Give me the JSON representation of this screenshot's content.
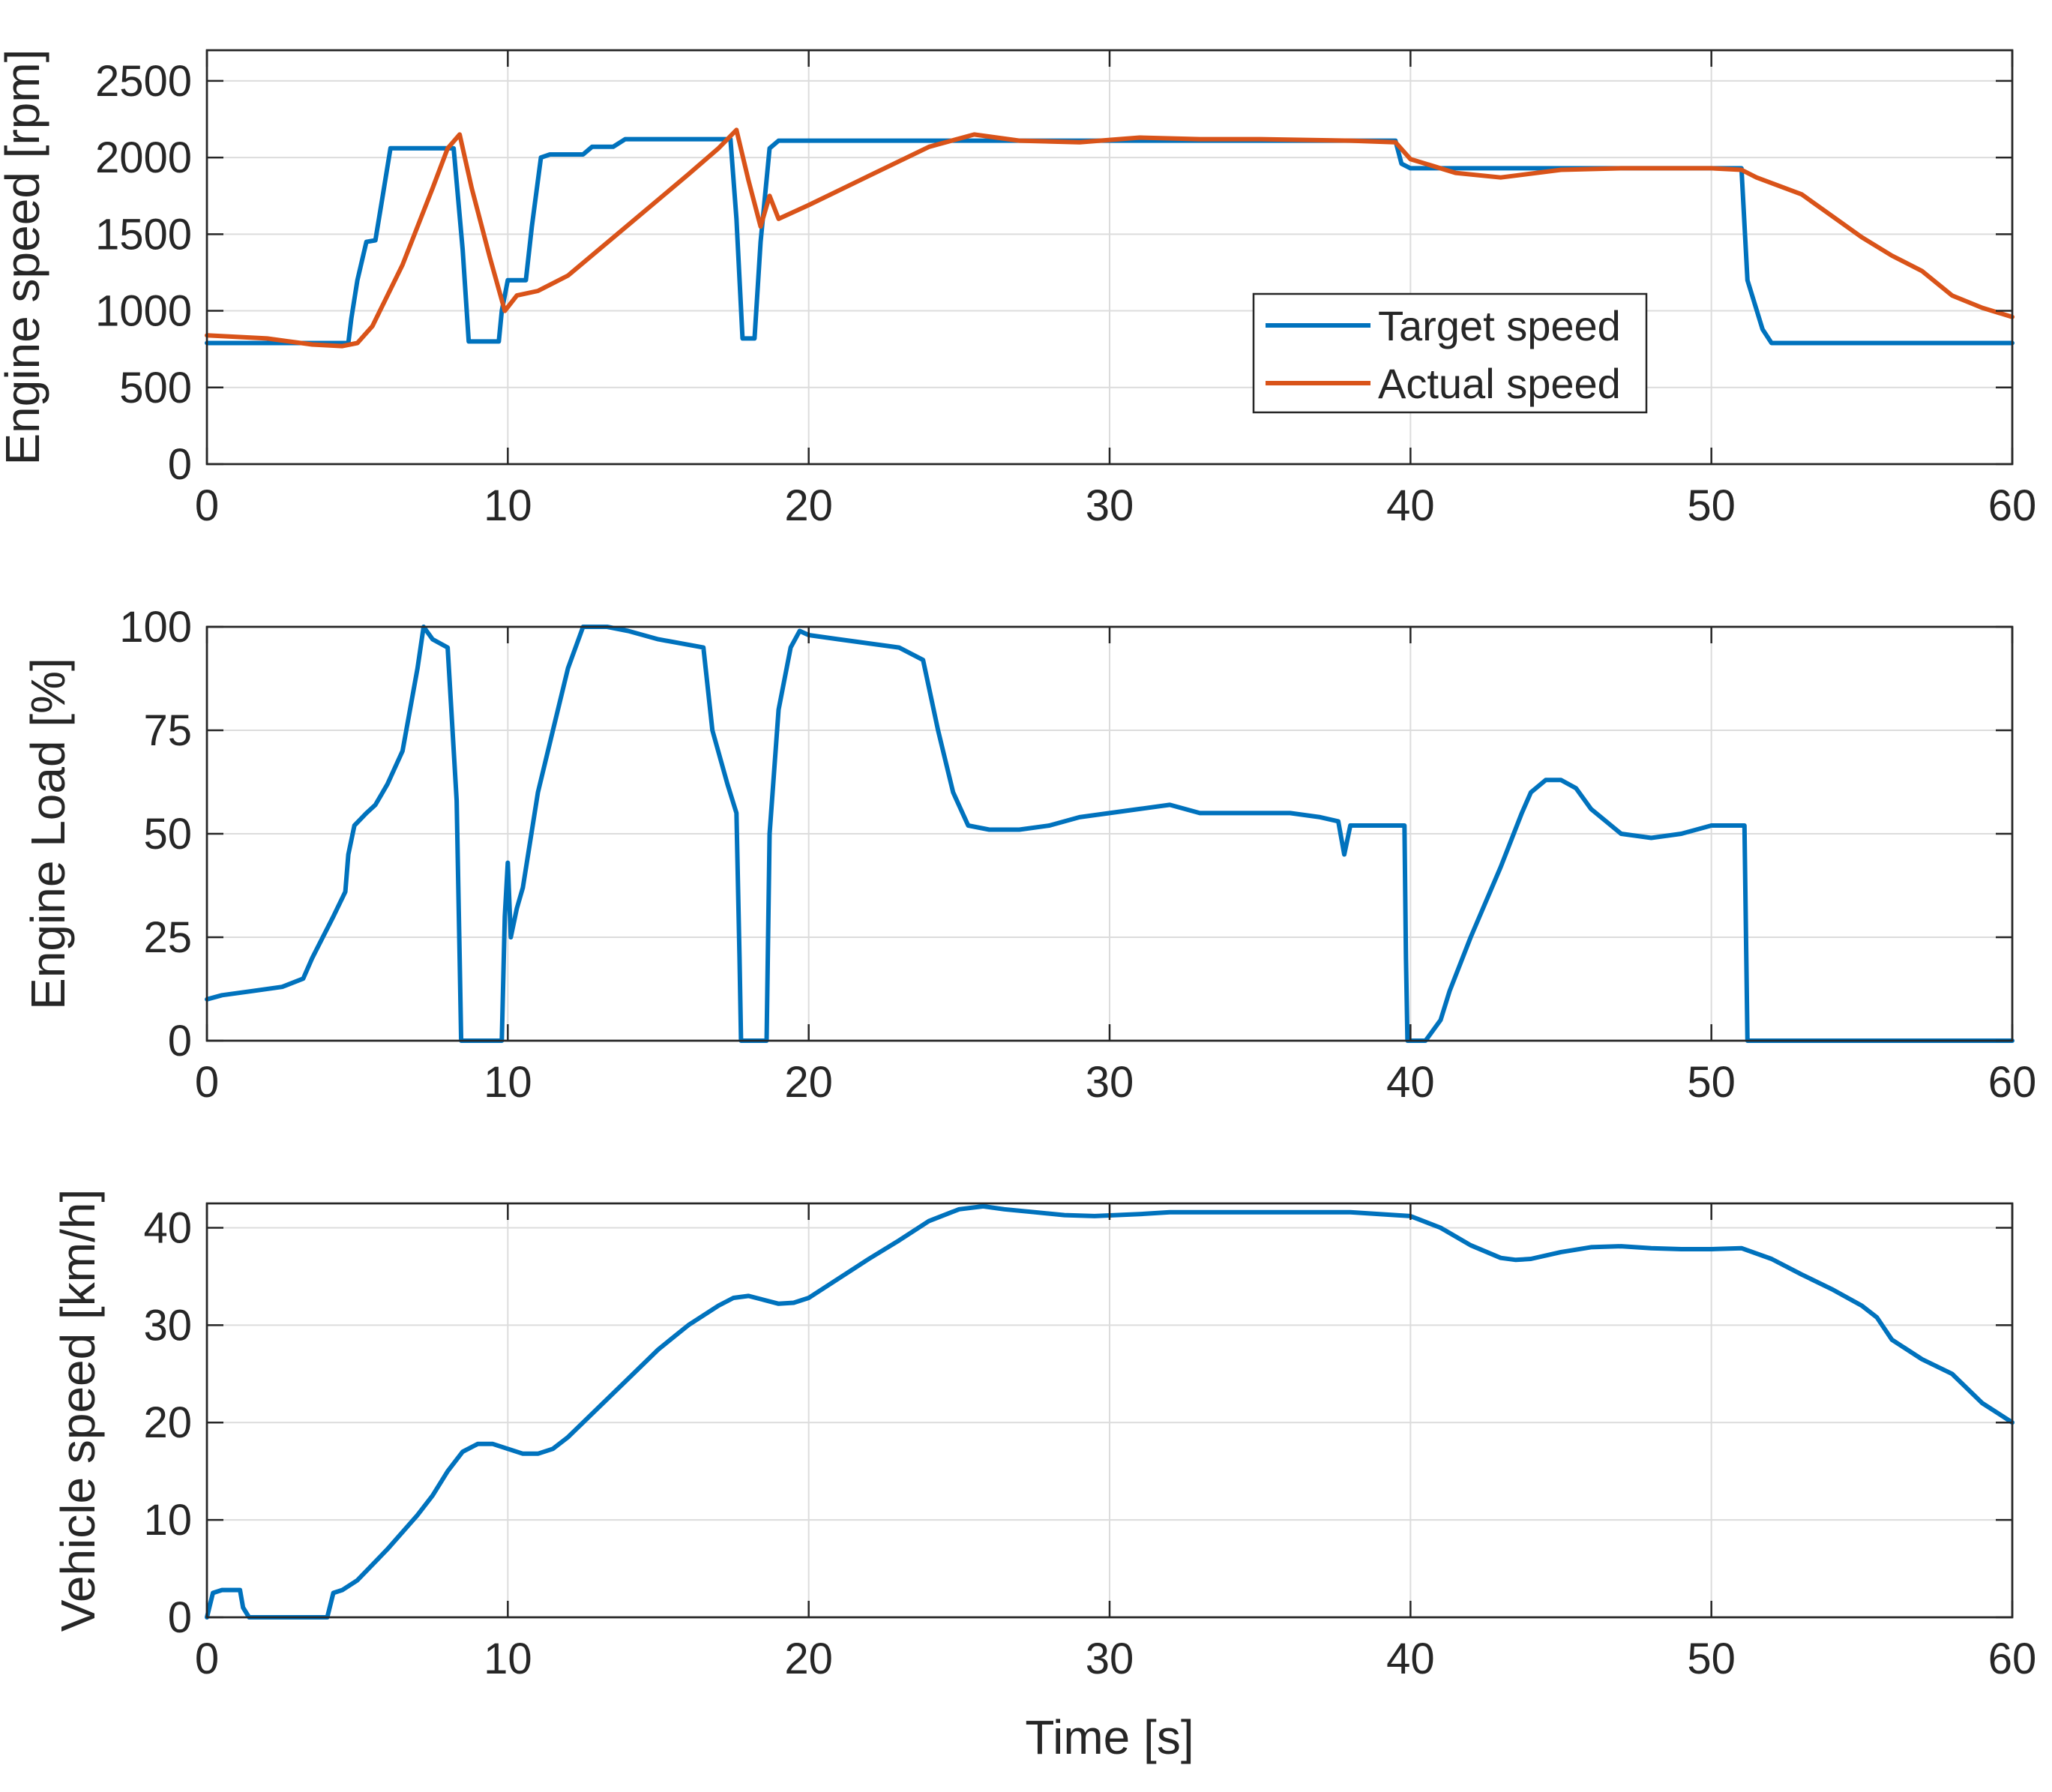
{
  "colors": {
    "target": "#0072BD",
    "actual": "#D95319",
    "grid": "#dcdcdc",
    "axis": "#262626"
  },
  "chart_data": [
    {
      "type": "line",
      "id": "engine-speed",
      "title": "",
      "xlabel": "",
      "ylabel": "Engine speed [rpm]",
      "xlim": [
        0,
        60
      ],
      "ylim": [
        0,
        2700
      ],
      "xticks": [
        0,
        10,
        20,
        30,
        40,
        50,
        60
      ],
      "yticks": [
        0,
        500,
        1000,
        1500,
        2000,
        2500
      ],
      "grid": true,
      "legend": {
        "position": "right-center",
        "entries": [
          "Target speed",
          "Actual speed"
        ]
      },
      "series": [
        {
          "name": "Target speed",
          "color": "#0072BD",
          "x": [
            0,
            4.7,
            4.8,
            5.0,
            5.3,
            5.6,
            5.8,
            6.1,
            8.2,
            8.5,
            8.7,
            9.7,
            9.8,
            10.0,
            10.6,
            10.8,
            11.1,
            11.4,
            12.5,
            12.8,
            13.5,
            13.9,
            17.4,
            17.6,
            17.8,
            18.2,
            18.4,
            18.7,
            19.0,
            39.5,
            39.7,
            40.0,
            51.0,
            51.2,
            51.7,
            52.0,
            60
          ],
          "y": [
            790,
            790,
            950,
            1200,
            1450,
            1460,
            1700,
            2060,
            2060,
            1400,
            800,
            800,
            1000,
            1200,
            1200,
            1550,
            2000,
            2020,
            2020,
            2070,
            2070,
            2120,
            2120,
            1600,
            820,
            820,
            1450,
            2060,
            2110,
            2110,
            1960,
            1930,
            1930,
            1200,
            880,
            790,
            790
          ]
        },
        {
          "name": "Actual speed",
          "color": "#D95319",
          "x": [
            0,
            2,
            3.5,
            4.5,
            5.0,
            5.5,
            6.5,
            7.5,
            8.0,
            8.4,
            8.8,
            9.4,
            9.9,
            10.3,
            11.0,
            12.0,
            14.0,
            16.0,
            17.0,
            17.6,
            18.0,
            18.4,
            18.7,
            19.0,
            20.0,
            22.0,
            24.0,
            25.5,
            27.0,
            29.0,
            31.0,
            33.0,
            35.0,
            38.0,
            39.5,
            40.0,
            41.5,
            43.0,
            45.0,
            47.0,
            50.0,
            51.0,
            51.5,
            53.0,
            54.0,
            55.0,
            56.0,
            57.0,
            58.0,
            59.0,
            60.0
          ],
          "y": [
            840,
            820,
            780,
            770,
            790,
            900,
            1300,
            1800,
            2060,
            2150,
            1800,
            1350,
            1000,
            1100,
            1130,
            1230,
            1560,
            1890,
            2060,
            2180,
            1850,
            1550,
            1750,
            1600,
            1690,
            1880,
            2070,
            2150,
            2110,
            2100,
            2130,
            2120,
            2120,
            2110,
            2100,
            1990,
            1900,
            1870,
            1920,
            1930,
            1930,
            1920,
            1870,
            1760,
            1620,
            1480,
            1360,
            1260,
            1100,
            1020,
            960
          ]
        }
      ]
    },
    {
      "type": "line",
      "id": "engine-load",
      "title": "",
      "xlabel": "",
      "ylabel": "Engine Load [%]",
      "xlim": [
        0,
        60
      ],
      "ylim": [
        0,
        100
      ],
      "xticks": [
        0,
        10,
        20,
        30,
        40,
        50,
        60
      ],
      "yticks": [
        0,
        25,
        50,
        75,
        100
      ],
      "grid": true,
      "series": [
        {
          "name": "Engine Load",
          "color": "#0072BD",
          "x": [
            0,
            0.5,
            1.5,
            2.5,
            3.2,
            3.5,
            4.2,
            4.6,
            4.7,
            4.9,
            5.3,
            5.6,
            6.0,
            6.5,
            7.0,
            7.2,
            7.5,
            8.0,
            8.3,
            8.4,
            8.45,
            9.8,
            9.9,
            10.0,
            10.1,
            10.3,
            10.5,
            11.0,
            11.5,
            12.0,
            12.5,
            13.3,
            14.0,
            15.0,
            16.5,
            16.8,
            17.3,
            17.6,
            17.7,
            17.75,
            18.6,
            18.7,
            19.0,
            19.4,
            19.7,
            20.0,
            21.0,
            22.0,
            23.0,
            23.8,
            24.3,
            24.8,
            25.3,
            26.0,
            27.0,
            28.0,
            29.0,
            30.0,
            31.0,
            32.0,
            33.0,
            34.0,
            35.0,
            36.0,
            37.0,
            37.6,
            37.8,
            38.0,
            39.0,
            39.8,
            39.85,
            39.9,
            40.0,
            40.5,
            41.0,
            41.3,
            42.0,
            43.0,
            43.7,
            44.0,
            44.5,
            45.0,
            45.5,
            46.0,
            46.5,
            47.0,
            48.0,
            49.0,
            50.0,
            51.0,
            51.1,
            51.2,
            60.0
          ],
          "y": [
            10,
            11,
            12,
            13,
            15,
            20,
            30,
            36,
            45,
            52,
            55,
            57,
            62,
            70,
            90,
            100,
            97,
            95,
            58,
            20,
            0,
            0,
            30,
            43,
            25,
            32,
            37,
            60,
            75,
            90,
            100,
            100,
            99,
            97,
            95,
            75,
            62,
            55,
            20,
            0,
            0,
            50,
            80,
            95,
            99,
            98,
            97,
            96,
            95,
            92,
            75,
            60,
            52,
            51,
            51,
            52,
            54,
            55,
            56,
            57,
            55,
            55,
            55,
            55,
            54,
            53,
            45,
            52,
            52,
            52,
            20,
            0,
            0,
            0,
            5,
            12,
            25,
            42,
            55,
            60,
            63,
            63,
            61,
            56,
            53,
            50,
            49,
            50,
            52,
            52,
            52,
            0,
            0
          ]
        }
      ]
    },
    {
      "type": "line",
      "id": "vehicle-speed",
      "title": "",
      "xlabel": "Time [s]",
      "ylabel": "Vehicle speed [km/h]",
      "xlim": [
        0,
        60
      ],
      "ylim": [
        0,
        42.5
      ],
      "xticks": [
        0,
        10,
        20,
        30,
        40,
        50,
        60
      ],
      "yticks": [
        0,
        10,
        20,
        30,
        40
      ],
      "grid": true,
      "series": [
        {
          "name": "Vehicle speed",
          "color": "#0072BD",
          "x": [
            0,
            0.2,
            0.5,
            1.1,
            1.2,
            1.4,
            4.0,
            4.2,
            4.5,
            5.0,
            6.0,
            7.0,
            7.5,
            8.0,
            8.5,
            9.0,
            9.5,
            10.0,
            10.5,
            11.0,
            11.5,
            12.0,
            13.0,
            14.0,
            15.0,
            16.0,
            17.0,
            17.5,
            18.0,
            18.5,
            19.0,
            19.5,
            20.0,
            21.0,
            22.0,
            23.0,
            24.0,
            25.0,
            25.8,
            26.5,
            27.5,
            28.5,
            29.5,
            31.0,
            32.0,
            34.0,
            36.0,
            38.0,
            39.5,
            40.0,
            41.0,
            42.0,
            43.0,
            43.5,
            44.0,
            45.0,
            46.0,
            47.0,
            48.0,
            49.0,
            50.0,
            51.0,
            52.0,
            53.0,
            54.0,
            55.0,
            55.5,
            56.0,
            57.0,
            58.0,
            58.5,
            59.0,
            60.0
          ],
          "y": [
            0,
            2.5,
            2.8,
            2.8,
            1.0,
            0,
            0,
            2.5,
            2.8,
            3.8,
            7.0,
            10.5,
            12.5,
            15.0,
            17.0,
            17.8,
            17.8,
            17.3,
            16.8,
            16.8,
            17.3,
            18.5,
            21.5,
            24.5,
            27.5,
            30.0,
            32.0,
            32.8,
            33.0,
            32.6,
            32.2,
            32.3,
            32.8,
            34.8,
            36.8,
            38.7,
            40.7,
            41.9,
            42.2,
            41.9,
            41.6,
            41.3,
            41.2,
            41.4,
            41.6,
            41.6,
            41.6,
            41.6,
            41.3,
            41.2,
            40.0,
            38.2,
            36.9,
            36.7,
            36.8,
            37.5,
            38.0,
            38.1,
            37.9,
            37.8,
            37.8,
            37.9,
            36.8,
            35.2,
            33.7,
            32.0,
            30.8,
            28.5,
            26.5,
            25.0,
            23.5,
            22.0,
            20.0
          ]
        }
      ]
    }
  ]
}
